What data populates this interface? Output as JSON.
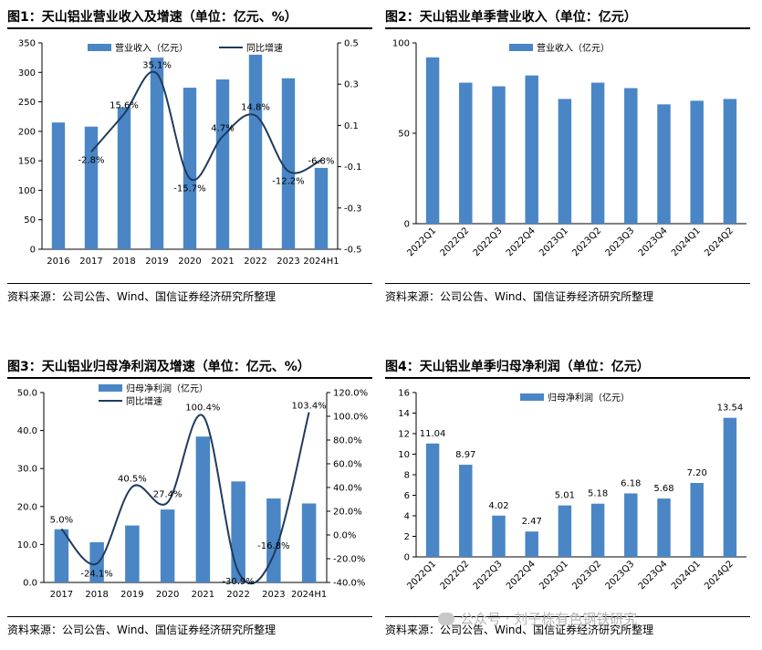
{
  "panels": [
    {
      "title": "图1：天山铝业营业收入及增速（单位：亿元、%）",
      "source": "资料来源：公司公告、Wind、国信证券经济研究所整理"
    },
    {
      "title": "图2：天山铝业单季营业收入（单位：亿元）",
      "source": "资料来源：公司公告、Wind、国信证券经济研究所整理"
    },
    {
      "title": "图3：天山铝业归母净利润及增速（单位：亿元、%）",
      "source": "资料来源：公司公告、Wind、国信证券经济研究所整理"
    },
    {
      "title": "图4：天山铝业单季归母净利润（单位：亿元）",
      "source": "资料来源：公司公告、Wind、国信证券经济研究所整理"
    }
  ],
  "watermark": "公众号 · 刘子栋有色钢铁研究",
  "colors": {
    "bar": "#4a86c5",
    "line": "#1f3b5e"
  },
  "chart_data": [
    {
      "type": "bar",
      "categories": [
        "2016",
        "2017",
        "2018",
        "2019",
        "2020",
        "2021",
        "2022",
        "2023",
        "2024H1"
      ],
      "series": [
        {
          "name": "营业收入（亿元）",
          "type": "bar",
          "axis": "left",
          "values": [
            215,
            208,
            241,
            325,
            274,
            288,
            330,
            290,
            138
          ]
        },
        {
          "name": "同比增速",
          "type": "line",
          "axis": "right",
          "values": [
            null,
            -0.028,
            0.156,
            0.351,
            -0.157,
            0.047,
            0.148,
            -0.122,
            -0.068
          ],
          "labels": [
            null,
            "-2.8%",
            "15.6%",
            "35.1%",
            "-15.7%",
            "4.7%",
            "14.8%",
            "-12.2%",
            "-6.8%"
          ]
        }
      ],
      "ylim_left": [
        0,
        350
      ],
      "yticks_left": [
        "0",
        "50",
        "100",
        "150",
        "200",
        "250",
        "300",
        "350"
      ],
      "ylim_right": [
        -0.5,
        0.5
      ],
      "yticks_right": [
        "-0.5",
        "-0.3",
        "-0.1",
        "0.1",
        "0.3",
        "0.5"
      ],
      "legend": "top"
    },
    {
      "type": "bar",
      "categories": [
        "2022Q1",
        "2022Q2",
        "2022Q3",
        "2022Q4",
        "2023Q1",
        "2023Q2",
        "2023Q3",
        "2023Q4",
        "2024Q1",
        "2024Q2"
      ],
      "series": [
        {
          "name": "营业收入（亿元）",
          "values": [
            92,
            78,
            76,
            82,
            69,
            78,
            75,
            66,
            68,
            69
          ]
        }
      ],
      "ylim": [
        0,
        100
      ],
      "yticks": [
        "0",
        "50",
        "100"
      ],
      "legend": "top"
    },
    {
      "type": "bar",
      "categories": [
        "2017",
        "2018",
        "2019",
        "2020",
        "2021",
        "2022",
        "2023",
        "2024H1"
      ],
      "series": [
        {
          "name": "归母净利润（亿元）",
          "type": "bar",
          "axis": "left",
          "values": [
            14.0,
            10.6,
            15.0,
            19.2,
            38.4,
            26.6,
            22.1,
            20.8
          ]
        },
        {
          "name": "同比增速",
          "type": "line",
          "axis": "right",
          "values": [
            5.0,
            -24.1,
            40.5,
            27.4,
            100.4,
            -30.9,
            -16.8,
            103.4
          ],
          "labels": [
            "5.0%",
            "-24.1%",
            "40.5%",
            "27.4%",
            "100.4%",
            "-30.9%",
            "-16.8%",
            "103.4%"
          ]
        }
      ],
      "ylim_left": [
        0,
        50
      ],
      "yticks_left": [
        "0.0",
        "10.0",
        "20.0",
        "30.0",
        "40.0",
        "50.0"
      ],
      "ylim_right": [
        -40,
        120
      ],
      "yticks_right": [
        "-40.0%",
        "-20.0%",
        "0.0%",
        "20.0%",
        "40.0%",
        "60.0%",
        "80.0%",
        "100.0%",
        "120.0%"
      ],
      "legend": "top"
    },
    {
      "type": "bar",
      "categories": [
        "2022Q1",
        "2022Q2",
        "2022Q3",
        "2022Q4",
        "2023Q1",
        "2023Q2",
        "2023Q3",
        "2023Q4",
        "2024Q1",
        "2024Q2"
      ],
      "series": [
        {
          "name": "归母净利润（亿元）",
          "values": [
            11.04,
            8.97,
            4.02,
            2.47,
            5.01,
            5.18,
            6.18,
            5.68,
            7.2,
            13.54
          ],
          "labels": [
            "11.04",
            "8.97",
            "4.02",
            "2.47",
            "5.01",
            "5.18",
            "6.18",
            "5.68",
            "7.20",
            "13.54"
          ]
        }
      ],
      "ylim": [
        0,
        16
      ],
      "yticks": [
        "0",
        "2",
        "4",
        "6",
        "8",
        "10",
        "12",
        "14",
        "16"
      ],
      "legend": "top"
    }
  ]
}
